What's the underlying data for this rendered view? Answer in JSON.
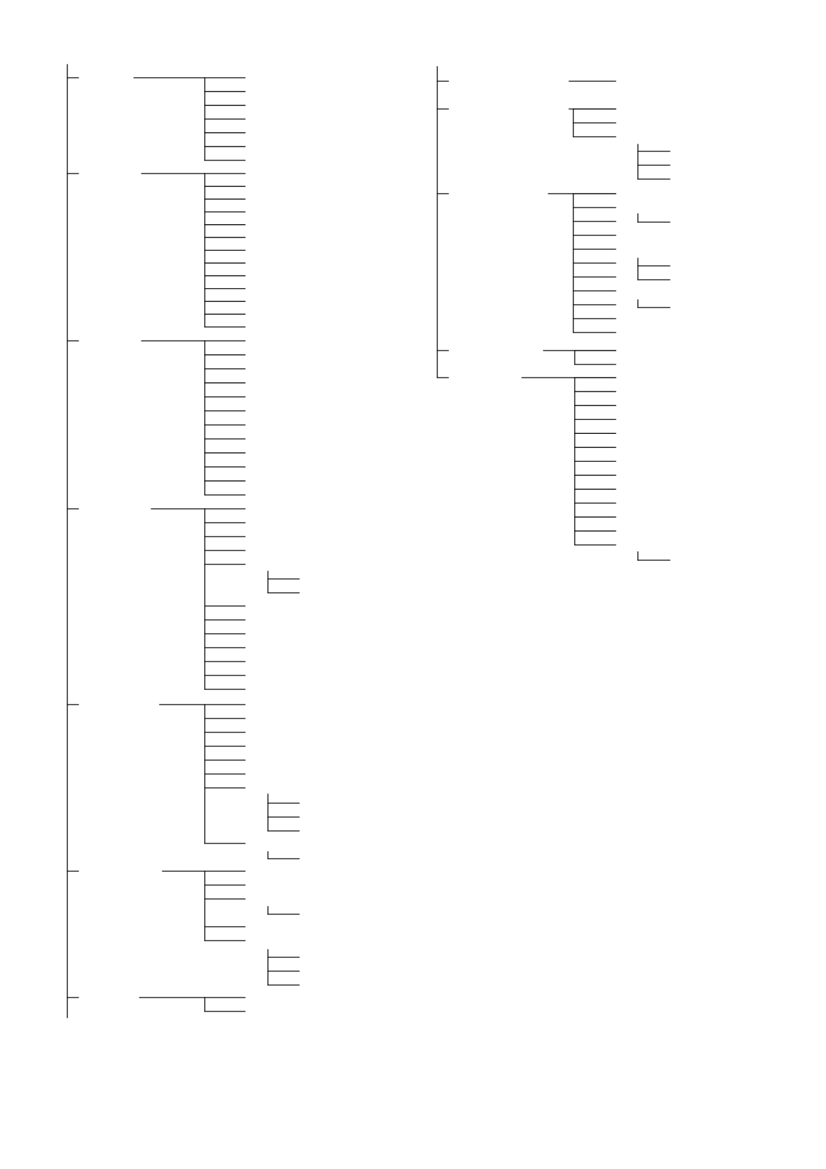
{
  "diagram": {
    "type": "tree",
    "labels_visible": false,
    "line_color": "#000000",
    "background_color": "#ffffff"
  }
}
